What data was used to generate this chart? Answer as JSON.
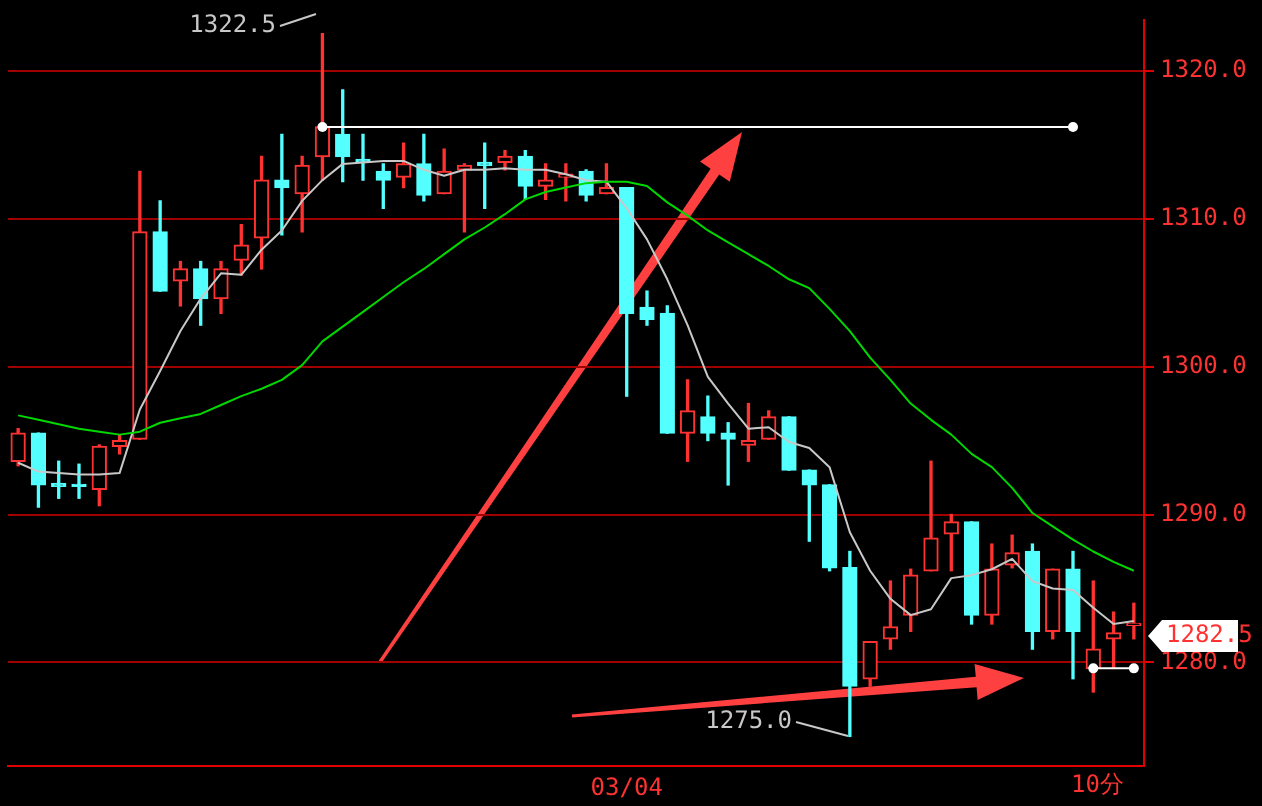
{
  "chart_data": {
    "type": "candlestick",
    "categories": [
      null,
      null,
      null,
      null,
      null,
      null,
      null,
      null,
      null,
      null,
      null,
      null,
      null,
      null,
      null,
      null,
      null,
      null,
      null,
      null,
      null,
      null,
      null,
      null,
      null,
      null,
      null,
      null,
      null,
      null,
      "03/04",
      null,
      null,
      null,
      null,
      null,
      null,
      null,
      null,
      null,
      null,
      null,
      null,
      null,
      null,
      null,
      null,
      null,
      null,
      null,
      null,
      null,
      null,
      null,
      null,
      null
    ],
    "ohlc": [
      [
        1293.6,
        1295.8,
        1293.3,
        1295.5
      ],
      [
        1295.5,
        1295.5,
        1290.5,
        1292.0
      ],
      [
        1292.1,
        1293.6,
        1291.1,
        1291.9
      ],
      [
        1292.0,
        1293.4,
        1291.1,
        1291.9
      ],
      [
        1291.7,
        1294.7,
        1290.6,
        1294.6
      ],
      [
        1294.6,
        1295.4,
        1294.1,
        1295.0
      ],
      [
        1295.1,
        1313.2,
        1295.1,
        1309.1
      ],
      [
        1309.1,
        1311.2,
        1305.1,
        1305.1
      ],
      [
        1305.8,
        1307.1,
        1304.1,
        1306.6
      ],
      [
        1306.6,
        1307.1,
        1302.8,
        1304.6
      ],
      [
        1304.6,
        1307.1,
        1303.6,
        1306.6
      ],
      [
        1307.2,
        1309.6,
        1306.2,
        1308.2
      ],
      [
        1308.7,
        1314.2,
        1306.6,
        1312.6
      ],
      [
        1312.6,
        1315.7,
        1308.9,
        1312.1
      ],
      [
        1311.7,
        1314.2,
        1309.1,
        1313.6
      ],
      [
        1314.2,
        1322.5,
        1312.6,
        1316.2
      ],
      [
        1315.7,
        1318.7,
        1312.5,
        1314.2
      ],
      [
        1314.0,
        1315.7,
        1312.6,
        1313.8
      ],
      [
        1313.2,
        1313.7,
        1310.7,
        1312.6
      ],
      [
        1312.8,
        1315.1,
        1312.1,
        1313.7
      ],
      [
        1313.7,
        1315.7,
        1311.2,
        1311.6
      ],
      [
        1311.7,
        1314.7,
        1311.7,
        1313.2
      ],
      [
        1313.3,
        1313.7,
        1309.1,
        1313.6
      ],
      [
        1313.8,
        1315.1,
        1310.7,
        1313.6
      ],
      [
        1313.8,
        1314.6,
        1313.3,
        1314.2
      ],
      [
        1314.2,
        1314.6,
        1311.3,
        1312.2
      ],
      [
        1312.2,
        1313.7,
        1311.3,
        1312.6
      ],
      [
        1312.8,
        1313.7,
        1311.2,
        1313.0
      ],
      [
        1313.2,
        1313.3,
        1311.2,
        1311.6
      ],
      [
        1311.7,
        1313.7,
        1311.7,
        1312.1
      ],
      [
        1312.1,
        1312.1,
        1298.0,
        1303.6
      ],
      [
        1304.0,
        1305.1,
        1302.8,
        1303.2
      ],
      [
        1303.6,
        1304.1,
        1295.5,
        1295.5
      ],
      [
        1295.5,
        1299.1,
        1293.6,
        1297.0
      ],
      [
        1296.6,
        1298.0,
        1295.0,
        1295.5
      ],
      [
        1295.5,
        1296.2,
        1292.0,
        1295.1
      ],
      [
        1294.7,
        1297.5,
        1293.6,
        1295.0
      ],
      [
        1295.1,
        1297.0,
        1295.1,
        1296.6
      ],
      [
        1296.6,
        1296.6,
        1293.0,
        1293.0
      ],
      [
        1293.0,
        1293.0,
        1288.2,
        1292.0
      ],
      [
        1292.0,
        1292.0,
        1286.2,
        1286.4
      ],
      [
        1286.4,
        1287.5,
        1275.0,
        1278.4
      ],
      [
        1278.9,
        1281.4,
        1278.4,
        1281.4
      ],
      [
        1281.6,
        1285.5,
        1280.9,
        1282.4
      ],
      [
        1283.2,
        1286.3,
        1282.1,
        1285.9
      ],
      [
        1286.2,
        1293.6,
        1286.2,
        1288.4
      ],
      [
        1288.7,
        1290.0,
        1286.2,
        1289.5
      ],
      [
        1289.5,
        1289.5,
        1282.6,
        1283.2
      ],
      [
        1283.2,
        1288.0,
        1282.6,
        1286.3
      ],
      [
        1286.6,
        1288.6,
        1286.4,
        1287.4
      ],
      [
        1287.5,
        1288.0,
        1280.9,
        1282.1
      ],
      [
        1282.1,
        1286.3,
        1281.6,
        1286.3
      ],
      [
        1286.3,
        1287.5,
        1278.9,
        1282.1
      ],
      [
        1279.6,
        1285.5,
        1278.0,
        1280.9
      ],
      [
        1281.6,
        1283.4,
        1279.6,
        1282.0
      ],
      [
        1282.5,
        1284.0,
        1281.6,
        1282.5
      ]
    ],
    "series": [
      {
        "type": "line",
        "color": "#c8c8c8",
        "values": [
          1293.5,
          1292.9,
          1292.8,
          1292.7,
          1292.7,
          1292.8,
          1297.1,
          1299.7,
          1302.4,
          1304.6,
          1306.3,
          1306.2,
          1307.9,
          1309.2,
          1311.2,
          1312.6,
          1313.7,
          1313.8,
          1313.9,
          1313.9,
          1313.3,
          1312.9,
          1313.3,
          1313.3,
          1313.4,
          1313.3,
          1313.3,
          1313.0,
          1312.6,
          1312.5,
          1310.7,
          1308.6,
          1305.9,
          1302.8,
          1299.3,
          1297.5,
          1295.8,
          1295.9,
          1294.9,
          1294.5,
          1293.2,
          1288.8,
          1286.2,
          1284.3,
          1283.2,
          1283.6,
          1285.7,
          1285.9,
          1286.3,
          1287.0,
          1285.5,
          1285.0,
          1284.9,
          1283.7,
          1282.6,
          1282.8
        ]
      },
      {
        "type": "line",
        "color": "#00d800",
        "values": [
          1296.7,
          1296.4,
          1296.1,
          1295.8,
          1295.6,
          1295.4,
          1295.6,
          1296.2,
          1296.5,
          1296.8,
          1297.4,
          1298.0,
          1298.5,
          1299.1,
          1300.1,
          1301.7,
          1302.7,
          1303.7,
          1304.7,
          1305.7,
          1306.6,
          1307.6,
          1308.6,
          1309.4,
          1310.3,
          1311.3,
          1311.8,
          1312.1,
          1312.4,
          1312.5,
          1312.5,
          1312.2,
          1311.1,
          1310.2,
          1309.2,
          1308.4,
          1307.6,
          1306.8,
          1305.9,
          1305.3,
          1303.9,
          1302.4,
          1300.6,
          1299.1,
          1297.5,
          1296.4,
          1295.4,
          1294.1,
          1293.2,
          1291.8,
          1290.1,
          1289.2,
          1288.3,
          1287.5,
          1286.8,
          1286.2
        ]
      },
      {
        "type": "line",
        "color": "#ffffff",
        "marker": "circle",
        "values": [
          null,
          null,
          null,
          null,
          null,
          null,
          null,
          null,
          null,
          null,
          null,
          null,
          null,
          null,
          null,
          1316.2,
          null,
          null,
          null,
          null,
          null,
          null,
          null,
          null,
          null,
          null,
          null,
          null,
          null,
          null,
          null,
          null,
          null,
          null,
          null,
          null,
          null,
          null,
          null,
          null,
          null,
          null,
          null,
          null,
          null,
          null,
          null,
          null,
          null,
          null,
          null,
          null,
          1316.2,
          null,
          null,
          null
        ]
      },
      {
        "type": "line",
        "color": "#ffffff",
        "marker": "circle",
        "values": [
          null,
          null,
          null,
          null,
          null,
          null,
          null,
          null,
          null,
          null,
          null,
          null,
          null,
          null,
          null,
          null,
          null,
          null,
          null,
          null,
          null,
          null,
          null,
          null,
          null,
          null,
          null,
          null,
          null,
          null,
          null,
          null,
          null,
          null,
          null,
          null,
          null,
          null,
          null,
          null,
          null,
          null,
          null,
          null,
          null,
          null,
          null,
          null,
          null,
          null,
          null,
          null,
          null,
          1279.6,
          null,
          1279.6
        ]
      }
    ],
    "ylim": [
      1273.0,
      1323.4
    ],
    "yticks": [
      {
        "value": 1280,
        "label": "1280.0"
      },
      {
        "value": 1290,
        "label": "1290.0"
      },
      {
        "value": 1300,
        "label": "1300.0"
      },
      {
        "value": 1310,
        "label": "1310.0"
      },
      {
        "value": 1320,
        "label": "1320.0"
      }
    ],
    "annotations": [
      "1322.5",
      "1275.0",
      "1282.5",
      "10分"
    ],
    "grid": "y",
    "legend": false,
    "marker": "none",
    "line_style": "solid"
  }
}
